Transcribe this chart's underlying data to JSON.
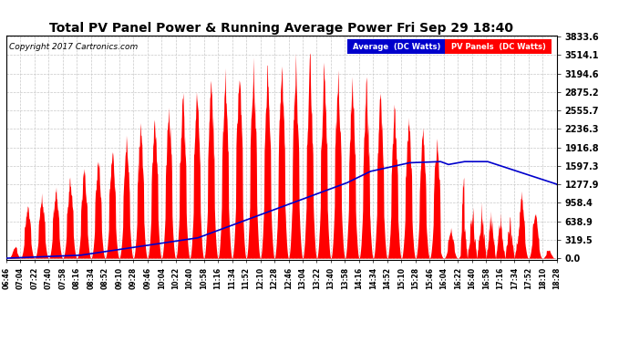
{
  "title": "Total PV Panel Power & Running Average Power Fri Sep 29 18:40",
  "copyright": "Copyright 2017 Cartronics.com",
  "legend_avg_label": "Average  (DC Watts)",
  "legend_pv_label": "PV Panels  (DC Watts)",
  "y_max": 3833.6,
  "y_ticks": [
    0.0,
    319.5,
    638.9,
    958.4,
    1277.9,
    1597.3,
    1916.8,
    2236.3,
    2555.7,
    2875.2,
    3194.6,
    3514.1,
    3833.6
  ],
  "background_color": "#ffffff",
  "plot_bg_color": "#ffffff",
  "grid_color": "#c8c8c8",
  "pv_color": "#ff0000",
  "avg_color": "#0000cc",
  "x_start_min": 406,
  "x_end_min": 1108,
  "interval_minutes": 18
}
